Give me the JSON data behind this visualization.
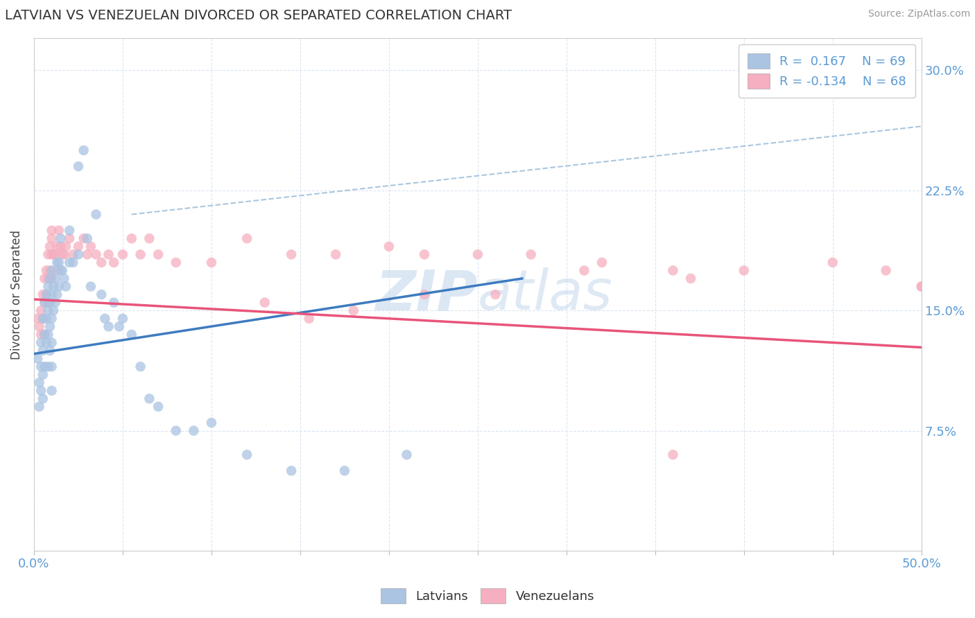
{
  "title": "LATVIAN VS VENEZUELAN DIVORCED OR SEPARATED CORRELATION CHART",
  "source": "Source: ZipAtlas.com",
  "ylabel": "Divorced or Separated",
  "xlim": [
    0.0,
    0.5
  ],
  "ylim": [
    0.0,
    0.32
  ],
  "xticks": [
    0.0,
    0.05,
    0.1,
    0.15,
    0.2,
    0.25,
    0.3,
    0.35,
    0.4,
    0.45,
    0.5
  ],
  "yticks": [
    0.0,
    0.075,
    0.15,
    0.225,
    0.3
  ],
  "ytick_labels": [
    "",
    "7.5%",
    "15.0%",
    "22.5%",
    "30.0%"
  ],
  "latvian_color": "#aac4e2",
  "venezuelan_color": "#f5afc0",
  "latvian_line_color": "#3d7bbf",
  "venezuelan_line_color": "#e8547a",
  "dashed_line_color": "#9dbcd8",
  "grid_color": "#d8e4f0",
  "background_color": "#ffffff",
  "watermark_text": "ZIPAtlas",
  "watermark_color": "#d0dff0",
  "legend_R1": "0.167",
  "legend_N1": "69",
  "legend_R2": "-0.134",
  "legend_N2": "68",
  "latvian_scatter_x": [
    0.002,
    0.003,
    0.003,
    0.004,
    0.004,
    0.004,
    0.005,
    0.005,
    0.005,
    0.005,
    0.006,
    0.006,
    0.006,
    0.007,
    0.007,
    0.007,
    0.008,
    0.008,
    0.008,
    0.008,
    0.009,
    0.009,
    0.009,
    0.009,
    0.01,
    0.01,
    0.01,
    0.01,
    0.01,
    0.01,
    0.011,
    0.011,
    0.012,
    0.012,
    0.013,
    0.013,
    0.014,
    0.014,
    0.015,
    0.015,
    0.016,
    0.017,
    0.018,
    0.02,
    0.02,
    0.022,
    0.025,
    0.025,
    0.028,
    0.03,
    0.032,
    0.035,
    0.038,
    0.04,
    0.042,
    0.045,
    0.048,
    0.05,
    0.055,
    0.06,
    0.065,
    0.07,
    0.08,
    0.09,
    0.1,
    0.12,
    0.145,
    0.175,
    0.21
  ],
  "latvian_scatter_y": [
    0.12,
    0.105,
    0.09,
    0.13,
    0.115,
    0.1,
    0.145,
    0.125,
    0.11,
    0.095,
    0.155,
    0.135,
    0.115,
    0.16,
    0.145,
    0.13,
    0.165,
    0.15,
    0.135,
    0.115,
    0.17,
    0.155,
    0.14,
    0.125,
    0.175,
    0.16,
    0.145,
    0.13,
    0.115,
    0.1,
    0.165,
    0.15,
    0.17,
    0.155,
    0.18,
    0.16,
    0.18,
    0.165,
    0.195,
    0.175,
    0.175,
    0.17,
    0.165,
    0.2,
    0.18,
    0.18,
    0.24,
    0.185,
    0.25,
    0.195,
    0.165,
    0.21,
    0.16,
    0.145,
    0.14,
    0.155,
    0.14,
    0.145,
    0.135,
    0.115,
    0.095,
    0.09,
    0.075,
    0.075,
    0.08,
    0.06,
    0.05,
    0.05,
    0.06
  ],
  "venezuelan_scatter_x": [
    0.002,
    0.003,
    0.004,
    0.004,
    0.005,
    0.005,
    0.006,
    0.006,
    0.006,
    0.007,
    0.007,
    0.008,
    0.008,
    0.008,
    0.009,
    0.009,
    0.01,
    0.01,
    0.01,
    0.01,
    0.011,
    0.012,
    0.013,
    0.013,
    0.014,
    0.015,
    0.016,
    0.017,
    0.018,
    0.02,
    0.022,
    0.025,
    0.028,
    0.03,
    0.032,
    0.035,
    0.038,
    0.042,
    0.045,
    0.05,
    0.055,
    0.06,
    0.065,
    0.07,
    0.08,
    0.1,
    0.12,
    0.145,
    0.17,
    0.2,
    0.22,
    0.25,
    0.28,
    0.32,
    0.36,
    0.4,
    0.45,
    0.48,
    0.5,
    0.5,
    0.37,
    0.31,
    0.26,
    0.22,
    0.18,
    0.155,
    0.13,
    0.36
  ],
  "venezuelan_scatter_y": [
    0.145,
    0.14,
    0.15,
    0.135,
    0.16,
    0.145,
    0.17,
    0.155,
    0.135,
    0.175,
    0.16,
    0.185,
    0.17,
    0.155,
    0.19,
    0.175,
    0.2,
    0.185,
    0.17,
    0.195,
    0.185,
    0.185,
    0.19,
    0.175,
    0.2,
    0.19,
    0.185,
    0.185,
    0.19,
    0.195,
    0.185,
    0.19,
    0.195,
    0.185,
    0.19,
    0.185,
    0.18,
    0.185,
    0.18,
    0.185,
    0.195,
    0.185,
    0.195,
    0.185,
    0.18,
    0.18,
    0.195,
    0.185,
    0.185,
    0.19,
    0.185,
    0.185,
    0.185,
    0.18,
    0.175,
    0.175,
    0.18,
    0.175,
    0.165,
    0.165,
    0.17,
    0.175,
    0.16,
    0.16,
    0.15,
    0.145,
    0.155,
    0.06
  ],
  "latvian_line_x": [
    0.0,
    0.275
  ],
  "latvian_line_y": [
    0.123,
    0.17
  ],
  "venezuelan_line_x": [
    0.0,
    0.5
  ],
  "venezuelan_line_y": [
    0.157,
    0.127
  ],
  "dashed_line_x": [
    0.055,
    0.5
  ],
  "dashed_line_y": [
    0.21,
    0.265
  ]
}
